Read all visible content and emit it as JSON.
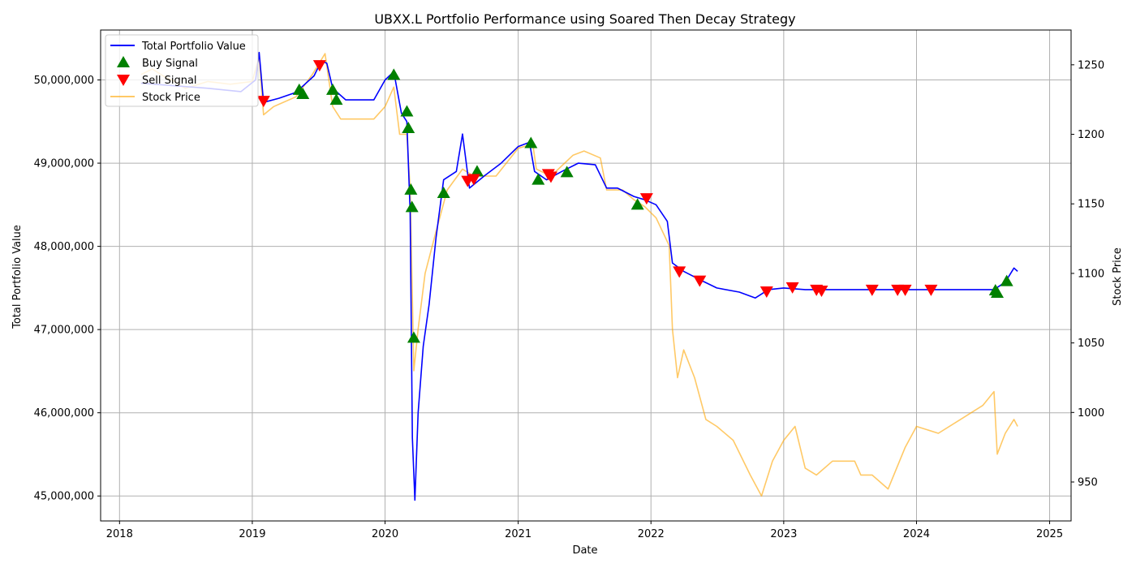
{
  "chart_data": {
    "type": "line",
    "title": "UBXX.L Portfolio Performance using Soared Then Decay Strategy",
    "xlabel": "Date",
    "ylabel": "Total Portfolio Value",
    "ylabel_right": "Stock Price",
    "grid": true,
    "legend_position": "top-left",
    "x_range": [
      "2017-11-10",
      "2025-03-01"
    ],
    "xticks": [
      "2018",
      "2019",
      "2020",
      "2021",
      "2022",
      "2023",
      "2024",
      "2025"
    ],
    "y_left_range": [
      44700000,
      50600000
    ],
    "y_left_ticks": [
      "45,000,000",
      "46,000,000",
      "47,000,000",
      "48,000,000",
      "49,000,000",
      "50,000,000"
    ],
    "y_right_range": [
      922,
      1275
    ],
    "y_right_ticks": [
      "950",
      "1000",
      "1050",
      "1100",
      "1150",
      "1200",
      "1250"
    ],
    "legend": [
      {
        "label": "Total Portfolio Value",
        "color": "#0000ff",
        "marker": "line"
      },
      {
        "label": "Buy Signal",
        "color": "#008000",
        "marker": "triangle-up"
      },
      {
        "label": "Sell Signal",
        "color": "#ff0000",
        "marker": "triangle-down"
      },
      {
        "label": "Stock Price",
        "color": "#ffa500",
        "marker": "line"
      }
    ],
    "series": [
      {
        "name": "Total Portfolio Value",
        "color": "#0000ff",
        "axis": "left",
        "points": [
          [
            "2018-03-01",
            49960000
          ],
          [
            "2018-06-01",
            49930000
          ],
          [
            "2018-09-01",
            49900000
          ],
          [
            "2018-12-01",
            49860000
          ],
          [
            "2019-01-10",
            50000000
          ],
          [
            "2019-01-20",
            50330000
          ],
          [
            "2019-02-01",
            49730000
          ],
          [
            "2019-03-15",
            49780000
          ],
          [
            "2019-05-01",
            49850000
          ],
          [
            "2019-06-20",
            50050000
          ],
          [
            "2019-07-10",
            50230000
          ],
          [
            "2019-07-25",
            50200000
          ],
          [
            "2019-08-10",
            49900000
          ],
          [
            "2019-09-15",
            49760000
          ],
          [
            "2019-12-01",
            49760000
          ],
          [
            "2020-01-01",
            50000000
          ],
          [
            "2020-01-25",
            50100000
          ],
          [
            "2020-02-15",
            49600000
          ],
          [
            "2020-03-01",
            49500000
          ],
          [
            "2020-03-10",
            48400000
          ],
          [
            "2020-03-16",
            45700000
          ],
          [
            "2020-03-23",
            44950000
          ],
          [
            "2020-04-01",
            46000000
          ],
          [
            "2020-04-15",
            46800000
          ],
          [
            "2020-05-01",
            47300000
          ],
          [
            "2020-05-20",
            48100000
          ],
          [
            "2020-06-10",
            48800000
          ],
          [
            "2020-07-15",
            48900000
          ],
          [
            "2020-08-01",
            49350000
          ],
          [
            "2020-08-20",
            48700000
          ],
          [
            "2020-10-01",
            48850000
          ],
          [
            "2020-11-15",
            49000000
          ],
          [
            "2021-01-01",
            49200000
          ],
          [
            "2021-02-01",
            49250000
          ],
          [
            "2021-02-15",
            48900000
          ],
          [
            "2021-03-20",
            48800000
          ],
          [
            "2021-05-01",
            48900000
          ],
          [
            "2021-06-15",
            49000000
          ],
          [
            "2021-08-01",
            48980000
          ],
          [
            "2021-09-01",
            48700000
          ],
          [
            "2021-10-01",
            48700000
          ],
          [
            "2021-11-15",
            48600000
          ],
          [
            "2021-12-15",
            48560000
          ],
          [
            "2022-01-15",
            48500000
          ],
          [
            "2022-02-15",
            48300000
          ],
          [
            "2022-03-01",
            47800000
          ],
          [
            "2022-04-01",
            47700000
          ],
          [
            "2022-05-15",
            47600000
          ],
          [
            "2022-07-01",
            47500000
          ],
          [
            "2022-09-01",
            47450000
          ],
          [
            "2022-10-15",
            47380000
          ],
          [
            "2022-11-20",
            47480000
          ],
          [
            "2023-01-01",
            47500000
          ],
          [
            "2023-03-01",
            47480000
          ],
          [
            "2023-06-01",
            47480000
          ],
          [
            "2023-09-01",
            47480000
          ],
          [
            "2024-01-01",
            47480000
          ],
          [
            "2024-04-01",
            47480000
          ],
          [
            "2024-07-01",
            47480000
          ],
          [
            "2024-08-01",
            47480000
          ],
          [
            "2024-09-01",
            47570000
          ],
          [
            "2024-09-25",
            47740000
          ],
          [
            "2024-10-05",
            47700000
          ]
        ]
      },
      {
        "name": "Stock Price",
        "color": "#ffa500",
        "axis": "right",
        "points": [
          [
            "2018-03-01",
            1243
          ],
          [
            "2018-04-01",
            1247
          ],
          [
            "2018-05-01",
            1242
          ],
          [
            "2018-06-01",
            1238
          ],
          [
            "2018-07-01",
            1233
          ],
          [
            "2018-09-01",
            1238
          ],
          [
            "2018-11-01",
            1236
          ],
          [
            "2019-01-01",
            1238
          ],
          [
            "2019-01-20",
            1256
          ],
          [
            "2019-02-01",
            1214
          ],
          [
            "2019-03-01",
            1220
          ],
          [
            "2019-05-01",
            1227
          ],
          [
            "2019-06-15",
            1243
          ],
          [
            "2019-07-20",
            1258
          ],
          [
            "2019-08-10",
            1220
          ],
          [
            "2019-09-01",
            1211
          ],
          [
            "2019-12-01",
            1211
          ],
          [
            "2020-01-01",
            1220
          ],
          [
            "2020-01-25",
            1234
          ],
          [
            "2020-02-10",
            1200
          ],
          [
            "2020-03-01",
            1200
          ],
          [
            "2020-03-10",
            1160
          ],
          [
            "2020-03-20",
            1030
          ],
          [
            "2020-04-01",
            1060
          ],
          [
            "2020-04-20",
            1100
          ],
          [
            "2020-05-20",
            1130
          ],
          [
            "2020-06-20",
            1160
          ],
          [
            "2020-08-01",
            1175
          ],
          [
            "2020-09-01",
            1170
          ],
          [
            "2020-11-01",
            1170
          ],
          [
            "2021-01-01",
            1190
          ],
          [
            "2021-02-10",
            1193
          ],
          [
            "2021-02-20",
            1175
          ],
          [
            "2021-04-01",
            1170
          ],
          [
            "2021-06-01",
            1185
          ],
          [
            "2021-07-01",
            1188
          ],
          [
            "2021-08-15",
            1183
          ],
          [
            "2021-09-01",
            1160
          ],
          [
            "2021-10-15",
            1160
          ],
          [
            "2021-11-15",
            1153
          ],
          [
            "2021-12-15",
            1148
          ],
          [
            "2022-01-15",
            1140
          ],
          [
            "2022-02-20",
            1120
          ],
          [
            "2022-03-01",
            1060
          ],
          [
            "2022-03-15",
            1025
          ],
          [
            "2022-04-01",
            1045
          ],
          [
            "2022-05-01",
            1025
          ],
          [
            "2022-06-01",
            995
          ],
          [
            "2022-07-01",
            990
          ],
          [
            "2022-08-15",
            980
          ],
          [
            "2022-10-01",
            955
          ],
          [
            "2022-11-01",
            940
          ],
          [
            "2022-12-01",
            965
          ],
          [
            "2023-01-01",
            980
          ],
          [
            "2023-02-01",
            990
          ],
          [
            "2023-03-01",
            960
          ],
          [
            "2023-04-01",
            955
          ],
          [
            "2023-05-15",
            965
          ],
          [
            "2023-07-15",
            965
          ],
          [
            "2023-08-01",
            955
          ],
          [
            "2023-09-01",
            955
          ],
          [
            "2023-10-15",
            945
          ],
          [
            "2023-12-01",
            975
          ],
          [
            "2024-01-01",
            990
          ],
          [
            "2024-03-01",
            985
          ],
          [
            "2024-05-01",
            995
          ],
          [
            "2024-07-01",
            1005
          ],
          [
            "2024-08-01",
            1015
          ],
          [
            "2024-08-10",
            970
          ],
          [
            "2024-09-01",
            985
          ],
          [
            "2024-09-25",
            995
          ],
          [
            "2024-10-05",
            990
          ]
        ]
      }
    ],
    "buy_signals": [
      [
        "2019-05-10",
        49880000
      ],
      [
        "2019-05-20",
        49830000
      ],
      [
        "2019-08-10",
        49880000
      ],
      [
        "2019-08-20",
        49760000
      ],
      [
        "2020-01-25",
        50060000
      ],
      [
        "2020-03-01",
        49620000
      ],
      [
        "2020-03-05",
        49420000
      ],
      [
        "2020-03-12",
        48680000
      ],
      [
        "2020-03-15",
        48470000
      ],
      [
        "2020-03-20",
        46900000
      ],
      [
        "2020-06-10",
        48640000
      ],
      [
        "2020-09-10",
        48900000
      ],
      [
        "2021-02-05",
        49240000
      ],
      [
        "2021-02-25",
        48800000
      ],
      [
        "2021-05-15",
        48890000
      ],
      [
        "2021-11-25",
        48500000
      ],
      [
        "2024-08-05",
        47470000
      ],
      [
        "2024-08-10",
        47440000
      ],
      [
        "2024-09-05",
        47580000
      ]
    ],
    "sell_signals": [
      [
        "2019-02-01",
        49750000
      ],
      [
        "2019-07-05",
        50180000
      ],
      [
        "2020-08-15",
        48790000
      ],
      [
        "2020-09-01",
        48810000
      ],
      [
        "2021-03-25",
        48870000
      ],
      [
        "2021-04-01",
        48840000
      ],
      [
        "2021-12-20",
        48580000
      ],
      [
        "2022-03-20",
        47700000
      ],
      [
        "2022-05-15",
        47590000
      ],
      [
        "2022-11-15",
        47460000
      ],
      [
        "2023-01-25",
        47510000
      ],
      [
        "2023-04-01",
        47480000
      ],
      [
        "2023-04-15",
        47470000
      ],
      [
        "2023-09-01",
        47480000
      ],
      [
        "2023-11-10",
        47480000
      ],
      [
        "2023-12-01",
        47480000
      ],
      [
        "2024-02-10",
        47480000
      ]
    ]
  }
}
